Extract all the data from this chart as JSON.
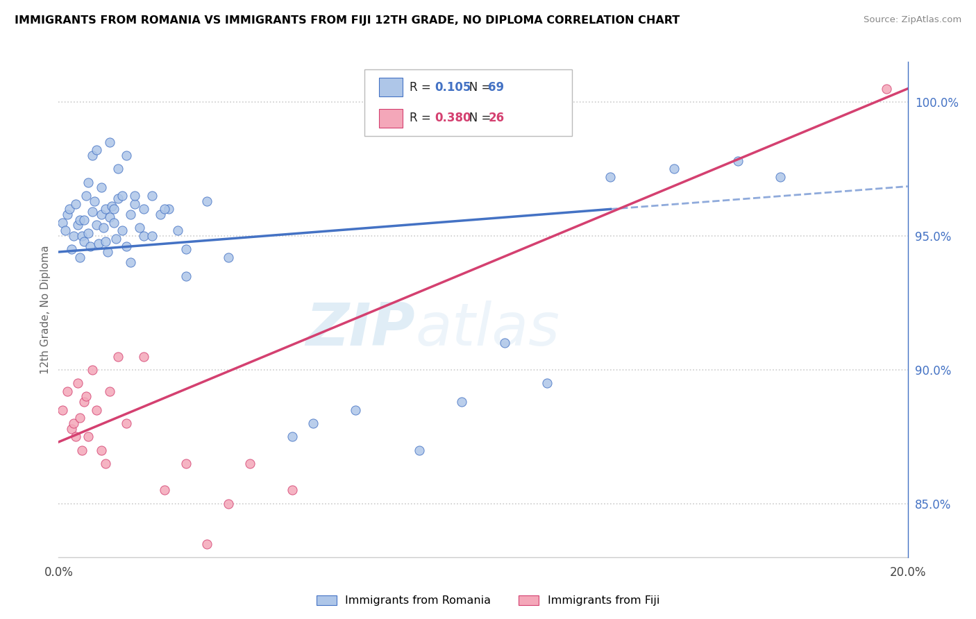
{
  "title": "IMMIGRANTS FROM ROMANIA VS IMMIGRANTS FROM FIJI 12TH GRADE, NO DIPLOMA CORRELATION CHART",
  "source": "Source: ZipAtlas.com",
  "ylabel": "12th Grade, No Diploma",
  "legend_label_blue": "Immigrants from Romania",
  "legend_label_pink": "Immigrants from Fiji",
  "R_blue": "0.105",
  "N_blue": "69",
  "R_pink": "0.380",
  "N_pink": "26",
  "xlim": [
    0.0,
    20.0
  ],
  "ylim": [
    83.0,
    101.5
  ],
  "x_ticks": [
    0.0,
    20.0
  ],
  "x_tick_labels": [
    "0.0%",
    "20.0%"
  ],
  "y_ticks": [
    85.0,
    90.0,
    95.0,
    100.0
  ],
  "y_tick_labels": [
    "85.0%",
    "90.0%",
    "95.0%",
    "100.0%"
  ],
  "color_blue": "#aec6e8",
  "color_pink": "#f4a7b9",
  "line_color_blue": "#4472c4",
  "line_color_pink": "#d44070",
  "watermark_zip": "ZIP",
  "watermark_atlas": "atlas",
  "romania_x": [
    0.1,
    0.15,
    0.2,
    0.25,
    0.3,
    0.35,
    0.4,
    0.45,
    0.5,
    0.55,
    0.6,
    0.65,
    0.7,
    0.75,
    0.8,
    0.85,
    0.9,
    0.95,
    1.0,
    1.05,
    1.1,
    1.15,
    1.2,
    1.25,
    1.3,
    1.35,
    1.4,
    1.5,
    1.6,
    1.7,
    1.8,
    1.9,
    2.0,
    2.2,
    2.4,
    2.6,
    2.8,
    3.0,
    3.5,
    4.0,
    5.5,
    6.0,
    7.0,
    8.5,
    9.5,
    10.5,
    11.5,
    13.0,
    14.5,
    16.0,
    17.0,
    1.1,
    1.3,
    0.5,
    0.6,
    0.7,
    0.8,
    0.9,
    1.0,
    1.2,
    1.4,
    1.6,
    1.8,
    2.0,
    2.5,
    3.0,
    1.5,
    1.7,
    2.2
  ],
  "romania_y": [
    95.5,
    95.2,
    95.8,
    96.0,
    94.5,
    95.0,
    96.2,
    95.4,
    95.6,
    95.0,
    94.8,
    96.5,
    95.1,
    94.6,
    95.9,
    96.3,
    95.4,
    94.7,
    95.8,
    95.3,
    96.0,
    94.4,
    95.7,
    96.1,
    95.5,
    94.9,
    96.4,
    95.2,
    94.6,
    95.8,
    96.2,
    95.3,
    96.0,
    96.5,
    95.8,
    96.0,
    95.2,
    94.5,
    96.3,
    94.2,
    87.5,
    88.0,
    88.5,
    87.0,
    88.8,
    91.0,
    89.5,
    97.2,
    97.5,
    97.8,
    97.2,
    94.8,
    96.0,
    94.2,
    95.6,
    97.0,
    98.0,
    98.2,
    96.8,
    98.5,
    97.5,
    98.0,
    96.5,
    95.0,
    96.0,
    93.5,
    96.5,
    94.0,
    95.0
  ],
  "fiji_x": [
    0.1,
    0.2,
    0.3,
    0.35,
    0.4,
    0.45,
    0.5,
    0.55,
    0.6,
    0.65,
    0.7,
    0.8,
    0.9,
    1.0,
    1.1,
    1.2,
    1.4,
    1.6,
    2.0,
    2.5,
    3.0,
    3.5,
    4.0,
    4.5,
    5.5,
    19.5
  ],
  "fiji_y": [
    88.5,
    89.2,
    87.8,
    88.0,
    87.5,
    89.5,
    88.2,
    87.0,
    88.8,
    89.0,
    87.5,
    90.0,
    88.5,
    87.0,
    86.5,
    89.2,
    90.5,
    88.0,
    90.5,
    85.5,
    86.5,
    83.5,
    85.0,
    86.5,
    85.5,
    100.5
  ],
  "trend_blue_x0": 0.0,
  "trend_blue_y0": 94.4,
  "trend_blue_x1": 13.0,
  "trend_blue_y1": 96.0,
  "trend_blue_dash_x0": 13.0,
  "trend_blue_dash_y0": 96.0,
  "trend_blue_dash_x1": 20.0,
  "trend_blue_dash_y1": 96.85,
  "trend_pink_x0": 0.0,
  "trend_pink_y0": 87.3,
  "trend_pink_x1": 20.0,
  "trend_pink_y1": 100.5
}
